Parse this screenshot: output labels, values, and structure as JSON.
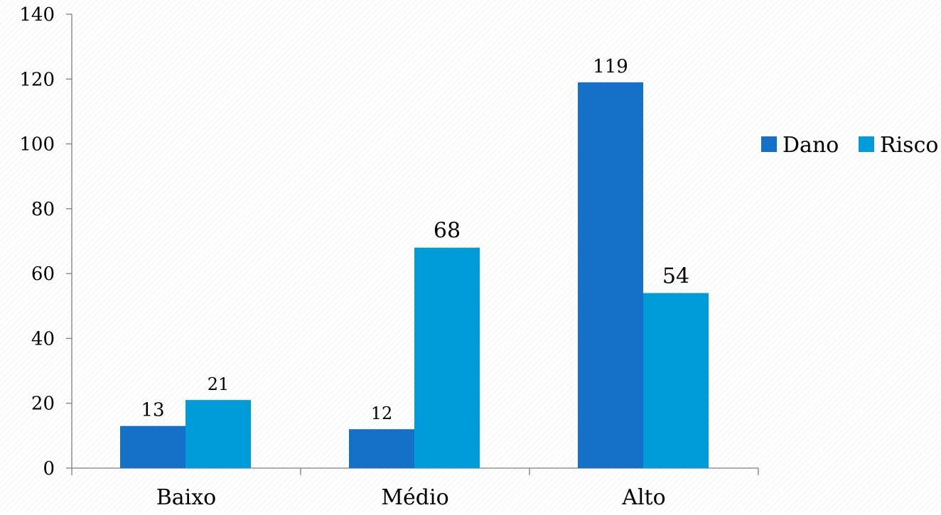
{
  "chart_data": {
    "type": "bar",
    "categories": [
      "Baixo",
      "Médio",
      "Alto"
    ],
    "series": [
      {
        "name": "Dano",
        "values": [
          13,
          12,
          119
        ],
        "color": "#1570C8"
      },
      {
        "name": "Risco",
        "values": [
          21,
          68,
          54
        ],
        "color": "#009CD9"
      }
    ],
    "title": "",
    "xlabel": "",
    "ylabel": "",
    "ylim": [
      0,
      140
    ],
    "yticks": [
      "0",
      "20",
      "40",
      "60",
      "80",
      "100",
      "120",
      "140"
    ],
    "data_labels": [
      [
        "13",
        "12",
        "119"
      ],
      [
        "21",
        "68",
        "54"
      ]
    ],
    "grid": false,
    "legend_position": "right"
  }
}
